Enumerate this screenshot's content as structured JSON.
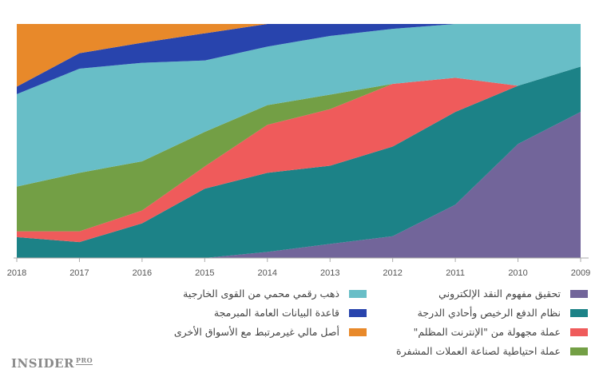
{
  "chart_data": {
    "type": "area",
    "stacked": true,
    "normalized_percent": true,
    "x_reversed": true,
    "categories": [
      "2009",
      "2010",
      "2011",
      "2012",
      "2013",
      "2014",
      "2015",
      "2016",
      "2017",
      "2018"
    ],
    "ylim": [
      0,
      100
    ],
    "grid": false,
    "legend_position": "bottom",
    "series": [
      {
        "name": "تحقيق مفهوم النقد الإلكتروني",
        "color": "#72659a",
        "values": [
          62.4,
          48.7,
          22.8,
          9.3,
          6.0,
          2.6,
          0,
          0,
          0,
          0
        ]
      },
      {
        "name": "نظام الدفع الرخيص وأحادي الدرجة",
        "color": "#1c8287",
        "values": [
          19.4,
          24.9,
          39.6,
          38.3,
          33.4,
          33.8,
          29.6,
          14.8,
          6.8,
          8.9
        ]
      },
      {
        "name": "عملة مجهولة من \"الإنترنت المظلم\"",
        "color": "#ef5b5b",
        "values": [
          0,
          0,
          14.6,
          26.8,
          24.2,
          20.5,
          9.5,
          5.5,
          4.6,
          2.5
        ]
      },
      {
        "name": "عملة احتياطية لصناعة العملات المشفرة",
        "color": "#739f45",
        "values": [
          0,
          0,
          0,
          0,
          6.2,
          8.4,
          14.8,
          21.0,
          25.0,
          19.1
        ]
      },
      {
        "name": "ذهب رقمي محمي من القوى الخارجية",
        "color": "#68bec7",
        "values": [
          18.2,
          26.4,
          23.0,
          23.5,
          25.1,
          25.0,
          30.5,
          42.1,
          44.5,
          39.5
        ]
      },
      {
        "name": "قاعدة البيانات العامة المبرمجة",
        "color": "#2844ad",
        "values": [
          0,
          0,
          0,
          2.1,
          5.1,
          9.7,
          11.6,
          8.6,
          6.6,
          3.2
        ]
      },
      {
        "name": "أصل مالي غيرمرتبط مع الأسواق الأخرى",
        "color": "#e8892a",
        "values": [
          0,
          0,
          0,
          0,
          0,
          0,
          4.0,
          8.0,
          12.5,
          26.8
        ]
      }
    ]
  },
  "logo": {
    "main": "INSIDER",
    "sub": "PRO"
  }
}
